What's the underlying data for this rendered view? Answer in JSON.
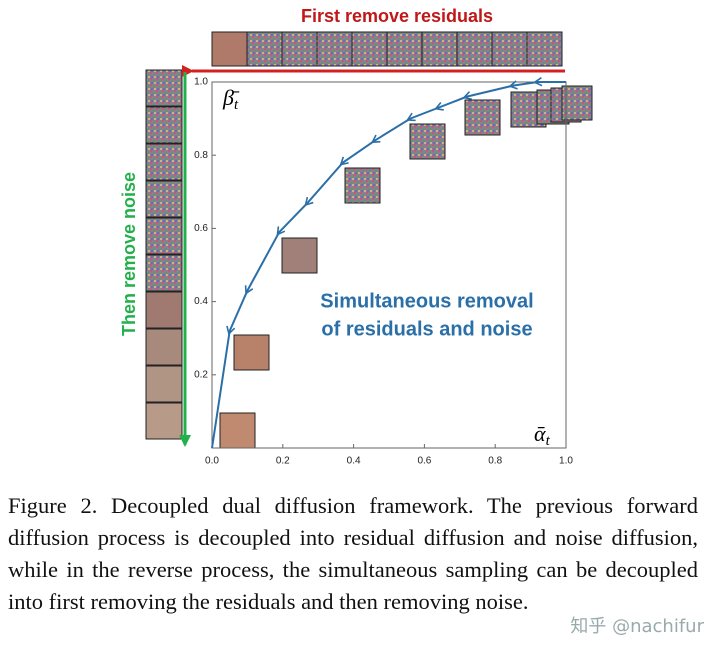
{
  "chart_data": {
    "type": "line",
    "title": "First remove residuals",
    "y_annotation": "Then remove noise",
    "center_annotation": [
      "Simultaneous removal",
      "of residuals and noise"
    ],
    "xlabel": "ᾱ",
    "xlabel_sub": "t",
    "ylabel": "β̄",
    "ylabel_sub": "t",
    "x": [
      0.0,
      0.05,
      0.1,
      0.19,
      0.27,
      0.37,
      0.46,
      0.56,
      0.64,
      0.72,
      0.85,
      0.92,
      1.0
    ],
    "series": [
      {
        "name": "path",
        "color": "#2a6fa8",
        "values": [
          0.0,
          0.32,
          0.43,
          0.59,
          0.67,
          0.78,
          0.84,
          0.9,
          0.93,
          0.96,
          0.99,
          1.0,
          1.0
        ]
      }
    ],
    "xlim": [
      0,
      1
    ],
    "ylim": [
      0,
      1
    ],
    "xticks": [
      {
        "value": 0,
        "label": "0.0"
      },
      0.2,
      0.4,
      0.6,
      0.8,
      {
        "value": 1,
        "label": "1.0"
      }
    ],
    "yticks": [
      0.2,
      0.4,
      0.6,
      0.8,
      {
        "value": 1,
        "label": "1.0"
      }
    ]
  },
  "caption": "Figure 2. Decoupled dual diffusion framework. The previous forward diffusion process is decoupled into residual diffusion and noise diffusion, while in the reverse process, the simultaneous sampling can be decoupled into first removing the residuals and then removing noise.",
  "watermark": "知乎 @nachifur"
}
